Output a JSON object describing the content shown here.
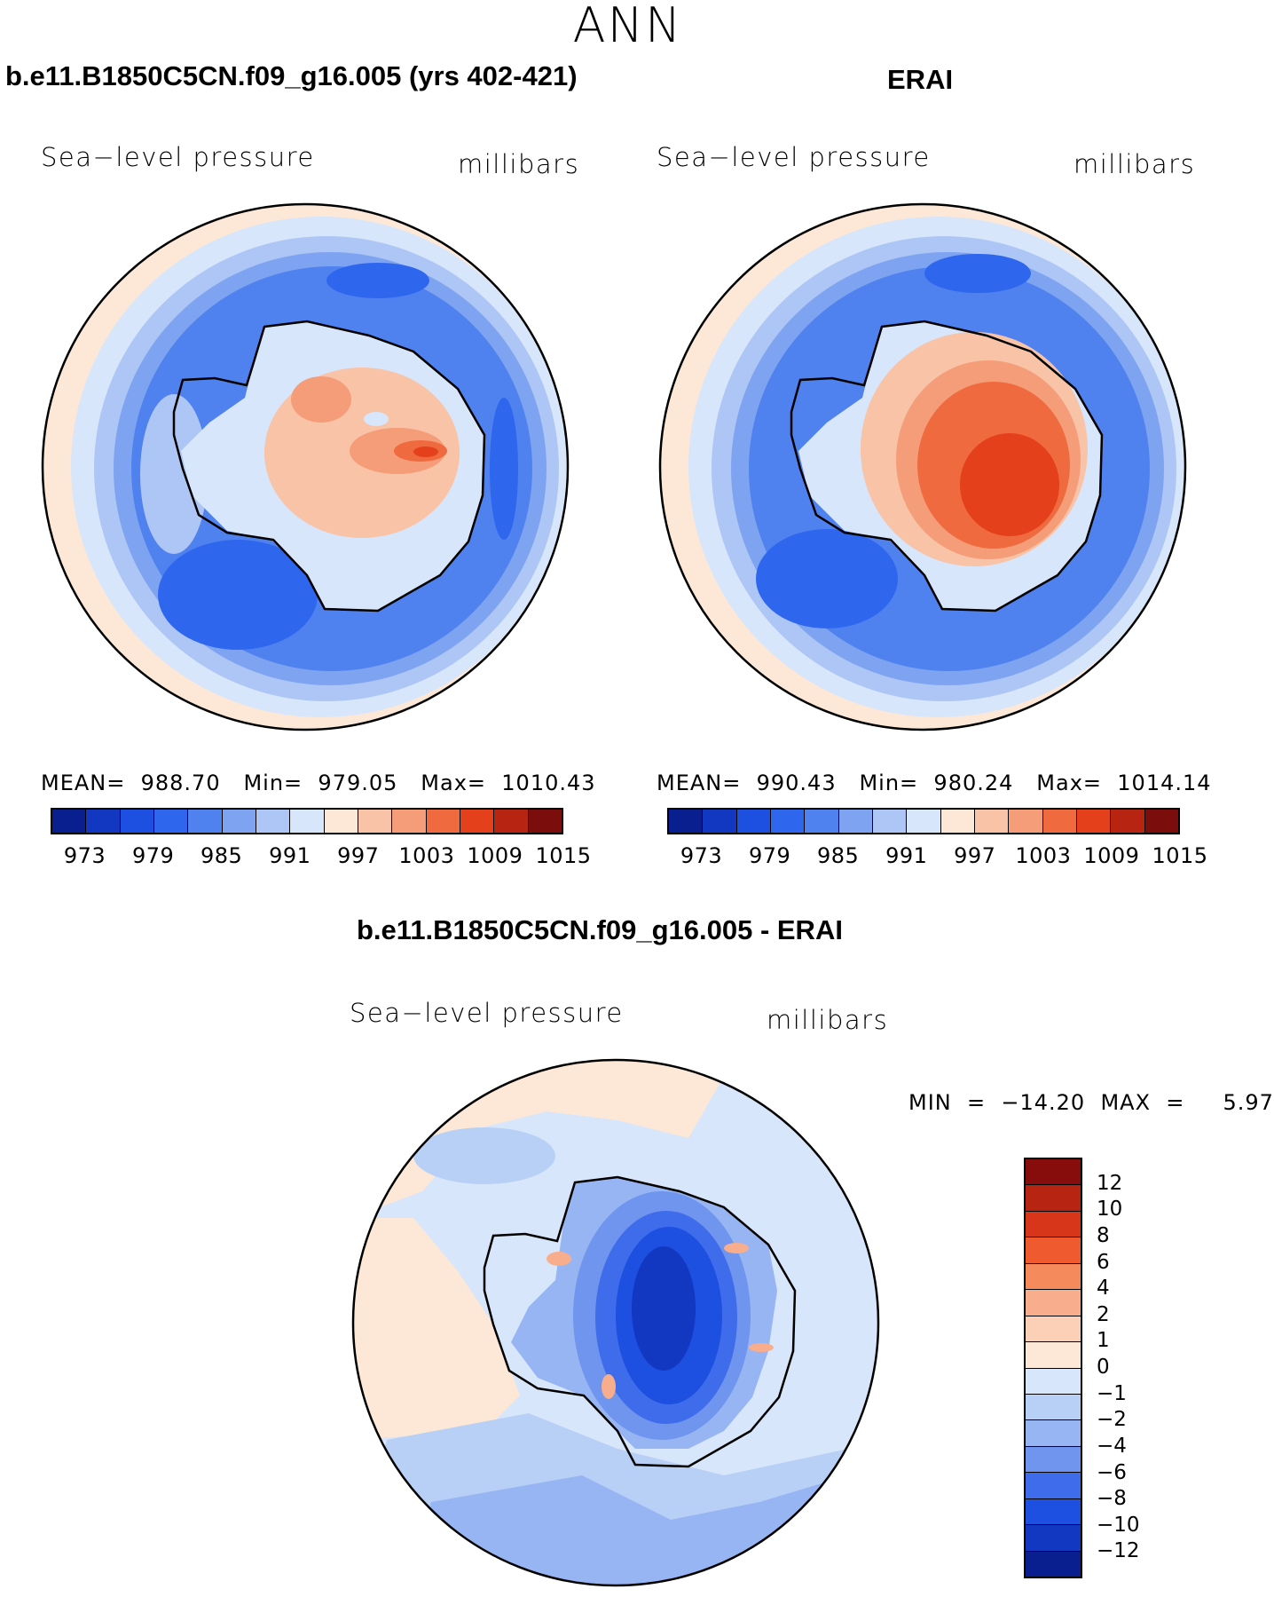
{
  "figure": {
    "season": "ANN",
    "panel1": {
      "title": "b.e11.B1850C5CN.f09_g16.005 (yrs 402-421)",
      "variable": "Sea−level  pressure",
      "units": "millibars",
      "stats": "MEAN=  988.70   Min=  979.05   Max=  1010.43"
    },
    "panel2": {
      "title": "ERAI",
      "variable": "Sea−level  pressure",
      "units": "millibars",
      "stats": "MEAN=  990.43   Min=  980.24   Max=  1014.14"
    },
    "panel3": {
      "title": "b.e11.B1850C5CN.f09_g16.005 - ERAI",
      "variable": "Sea−level  pressure",
      "units": "millibars",
      "minmax": "MIN  =  −14.20  MAX  =     5.97"
    }
  },
  "colorbar_abs": {
    "ticks": [
      "973",
      "979",
      "985",
      "991",
      "997",
      "1003",
      "1009",
      "1015"
    ],
    "colors": [
      "#0a1f8f",
      "#1238c2",
      "#1d4fe0",
      "#2e66ee",
      "#4f82ee",
      "#7ea3f0",
      "#aec6f5",
      "#d7e6fa",
      "#fde8d8",
      "#f9c3a8",
      "#f59d78",
      "#ef6a3f",
      "#e3401b",
      "#b82412",
      "#7c0d0d"
    ]
  },
  "colorbar_diff": {
    "ticks": [
      "12",
      "10",
      "8",
      "6",
      "4",
      "2",
      "1",
      "0",
      "−1",
      "−2",
      "−4",
      "−6",
      "−8",
      "−10",
      "−12"
    ],
    "colors": [
      "#870d0d",
      "#b82412",
      "#d8361a",
      "#ef5a2e",
      "#f58a5d",
      "#f8ad8c",
      "#fbd0b6",
      "#fde8d8",
      "#d7e6fa",
      "#b9d0f6",
      "#98b5f3",
      "#6f95ee",
      "#3f6ceb",
      "#1d4fe0",
      "#1238c2",
      "#0a1f8f"
    ]
  },
  "map_colors": {
    "m_outer": "#fde8d8",
    "m_light": "#d7e6fa",
    "m_mid": "#aec6f5",
    "m_blue": "#7ea3f0",
    "m_deep": "#4f82ee",
    "m_deeper": "#2e66ee",
    "m_land": "#d7e6fa",
    "m_hot1": "#f9c3a8",
    "m_hot2": "#f59d78",
    "m_hot3": "#ef6a3f",
    "m_hot4": "#e3401b",
    "d_base": "#d7e6fa",
    "d_pink": "#fde8d8",
    "d_mid": "#b9d0f6",
    "d_blue": "#98b5f3",
    "d_low1": "#6f95ee",
    "d_low2": "#3f6ceb",
    "d_low3": "#1d4fe0",
    "d_low4": "#1238c2",
    "d_warm": "#f8ad8c"
  }
}
